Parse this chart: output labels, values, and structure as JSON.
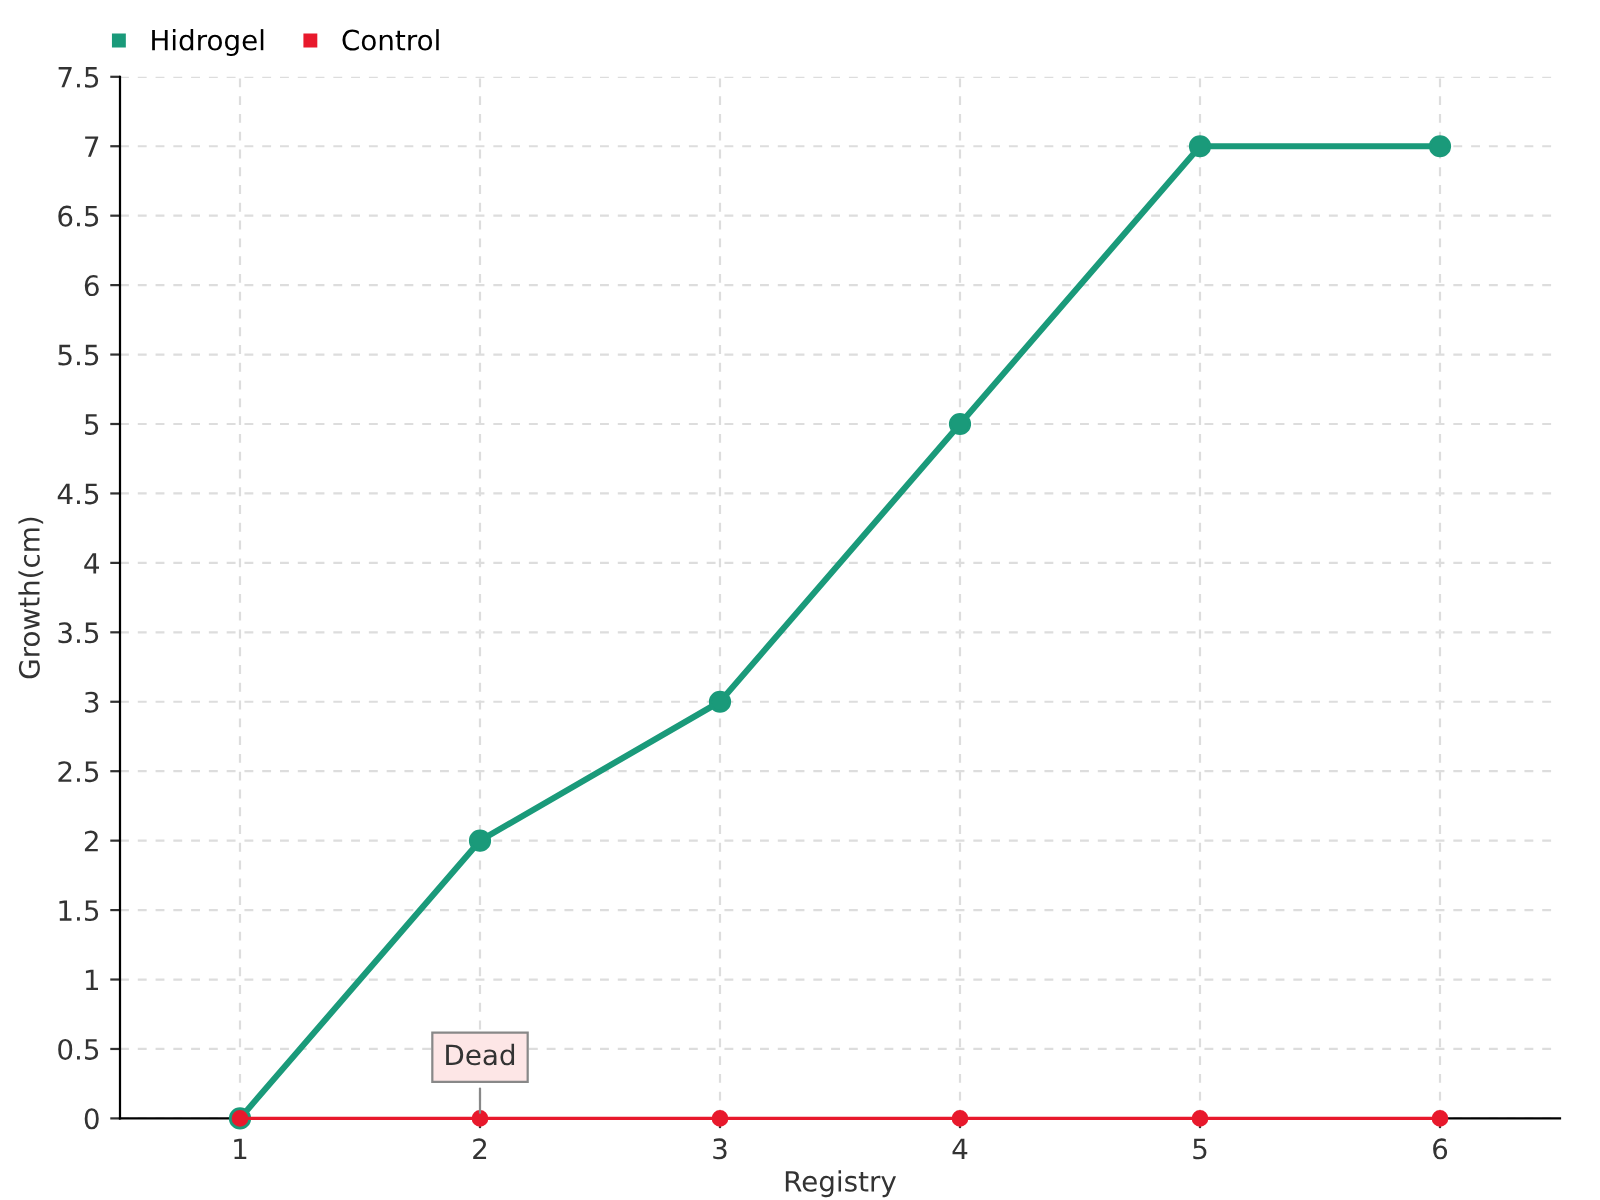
{
  "chart_data": {
    "type": "line",
    "xlabel": "Registry",
    "ylabel": "Growth(cm)",
    "x": [
      1,
      2,
      3,
      4,
      5,
      6
    ],
    "series": [
      {
        "name": "Hidrogel",
        "color": "#1a9a7a",
        "values": [
          0,
          2,
          3,
          5,
          7,
          7
        ]
      },
      {
        "name": "Control",
        "color": "#e8192c",
        "values": [
          0,
          0,
          0,
          0,
          0,
          0
        ]
      }
    ],
    "xlim": [
      0.5,
      6.5
    ],
    "xticks": [
      1,
      2,
      3,
      4,
      5,
      6
    ],
    "ylim": [
      0,
      7.5
    ],
    "yticks": [
      0,
      0.5,
      1,
      1.5,
      2,
      2.5,
      3,
      3.5,
      4,
      4.5,
      5,
      5.5,
      6,
      6.5,
      7,
      7.5
    ],
    "grid": true,
    "legend": "top left",
    "marker": "circle",
    "annotations": [
      {
        "text": "Dead",
        "x": 2,
        "y": 0
      }
    ]
  }
}
